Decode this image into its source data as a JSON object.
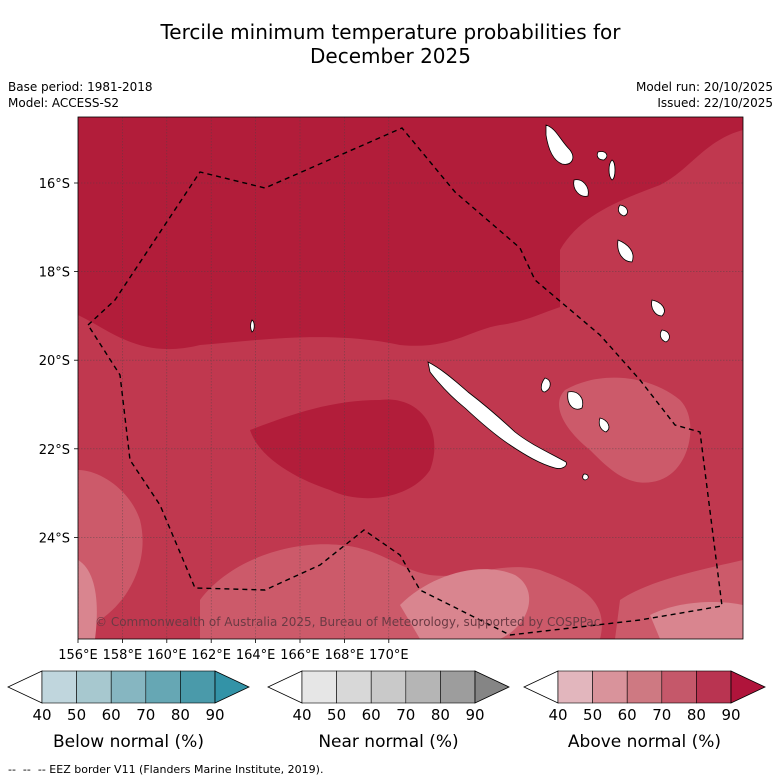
{
  "title_line1": "Tercile minimum temperature probabilities for",
  "title_line2": "December 2025",
  "meta_left": [
    "Base period: 1981-2018",
    "Model: ACCESS-S2"
  ],
  "meta_right": [
    "Model run: 20/10/2025",
    "Issued: 22/10/2025"
  ],
  "map": {
    "lon_ticks": [
      "156°E",
      "158°E",
      "160°E",
      "162°E",
      "164°E",
      "166°E",
      "168°E",
      "170°E"
    ],
    "lat_ticks": [
      "16°S",
      "18°S",
      "20°S",
      "22°S",
      "24°S"
    ],
    "copyright": "© Commonwealth of Australia 2025, Bureau of Meteorology, supported by COSPPac",
    "colors": {
      "above_80": "#b21d3a",
      "above_70": "#c0384f",
      "above_60": "#cc5a6a",
      "above_50": "#d9858f",
      "land": "#ffffff"
    }
  },
  "colorbars": [
    {
      "label": "Below normal (%)",
      "ticks": [
        "40",
        "50",
        "60",
        "70",
        "80",
        "90"
      ],
      "colors": [
        "#ffffff",
        "#c0d6dd",
        "#a7c8cf",
        "#86b6c1",
        "#66a7b4",
        "#4a9aaa",
        "#3393a7"
      ]
    },
    {
      "label": "Near normal (%)",
      "ticks": [
        "40",
        "50",
        "60",
        "70",
        "80",
        "90"
      ],
      "colors": [
        "#ffffff",
        "#e6e6e6",
        "#d8d8d8",
        "#c9c9c9",
        "#b5b5b5",
        "#9d9d9d",
        "#858585"
      ]
    },
    {
      "label": "Above normal (%)",
      "ticks": [
        "40",
        "50",
        "60",
        "70",
        "80",
        "90"
      ],
      "colors": [
        "#ffffff",
        "#e2b6bd",
        "#d9939b",
        "#ce7982",
        "#c5586a",
        "#b93451",
        "#b0143b"
      ]
    }
  ],
  "footer": "--  --  -- EEZ border V11 (Flanders Marine Institute, 2019)."
}
